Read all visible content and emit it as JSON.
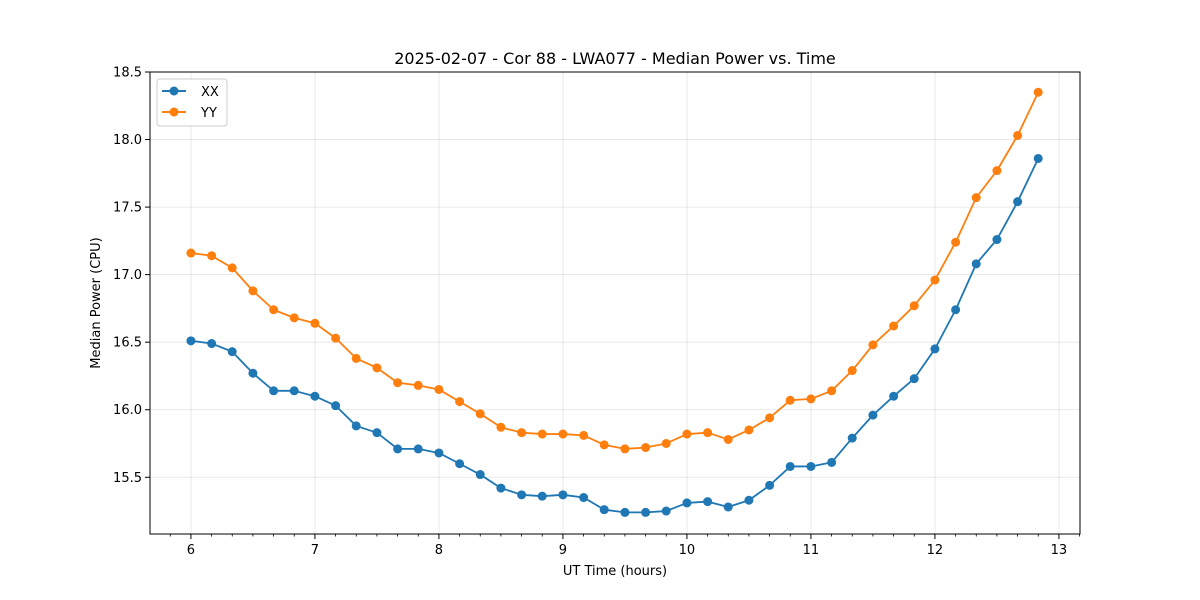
{
  "chart_data": {
    "type": "line",
    "title": "2025-02-07 - Cor 88 - LWA077 - Median Power vs. Time",
    "xlabel": "UT Time (hours)",
    "ylabel": "Median Power (CPU)",
    "xlim": [
      5.67,
      13.17
    ],
    "ylim": [
      15.08,
      18.5
    ],
    "xticks": [
      6,
      7,
      8,
      9,
      10,
      11,
      12,
      13
    ],
    "yticks": [
      15.5,
      16.0,
      16.5,
      17.0,
      17.5,
      18.0,
      18.5
    ],
    "ytick_labels": [
      "15.5",
      "16.0",
      "16.5",
      "17.0",
      "17.5",
      "18.0",
      "18.5"
    ],
    "grid": true,
    "legend_position": "top-left",
    "x": [
      6.0,
      6.167,
      6.333,
      6.5,
      6.667,
      6.833,
      7.0,
      7.167,
      7.333,
      7.5,
      7.667,
      7.833,
      8.0,
      8.167,
      8.333,
      8.5,
      8.667,
      8.833,
      9.0,
      9.167,
      9.333,
      9.5,
      9.667,
      9.833,
      10.0,
      10.167,
      10.333,
      10.5,
      10.667,
      10.833,
      11.0,
      11.167,
      11.333,
      11.5,
      11.667,
      11.833,
      12.0,
      12.167,
      12.333,
      12.5,
      12.667,
      12.833
    ],
    "series": [
      {
        "name": "XX",
        "color": "#1f77b4",
        "values": [
          16.51,
          16.49,
          16.43,
          16.27,
          16.14,
          16.14,
          16.1,
          16.03,
          15.88,
          15.83,
          15.71,
          15.71,
          15.68,
          15.6,
          15.52,
          15.42,
          15.37,
          15.36,
          15.37,
          15.35,
          15.26,
          15.24,
          15.24,
          15.25,
          15.31,
          15.32,
          15.28,
          15.33,
          15.44,
          15.58,
          15.58,
          15.61,
          15.79,
          15.96,
          16.1,
          16.23,
          16.45,
          16.74,
          17.08,
          17.26,
          17.54,
          17.86
        ]
      },
      {
        "name": "YY",
        "color": "#ff7f0e",
        "values": [
          17.16,
          17.14,
          17.05,
          16.88,
          16.74,
          16.68,
          16.64,
          16.53,
          16.38,
          16.31,
          16.2,
          16.18,
          16.15,
          16.06,
          15.97,
          15.87,
          15.83,
          15.82,
          15.82,
          15.81,
          15.74,
          15.71,
          15.72,
          15.75,
          15.82,
          15.83,
          15.78,
          15.85,
          15.94,
          16.07,
          16.08,
          16.14,
          16.29,
          16.48,
          16.62,
          16.77,
          16.96,
          17.24,
          17.57,
          17.77,
          18.03,
          18.35
        ]
      }
    ]
  }
}
